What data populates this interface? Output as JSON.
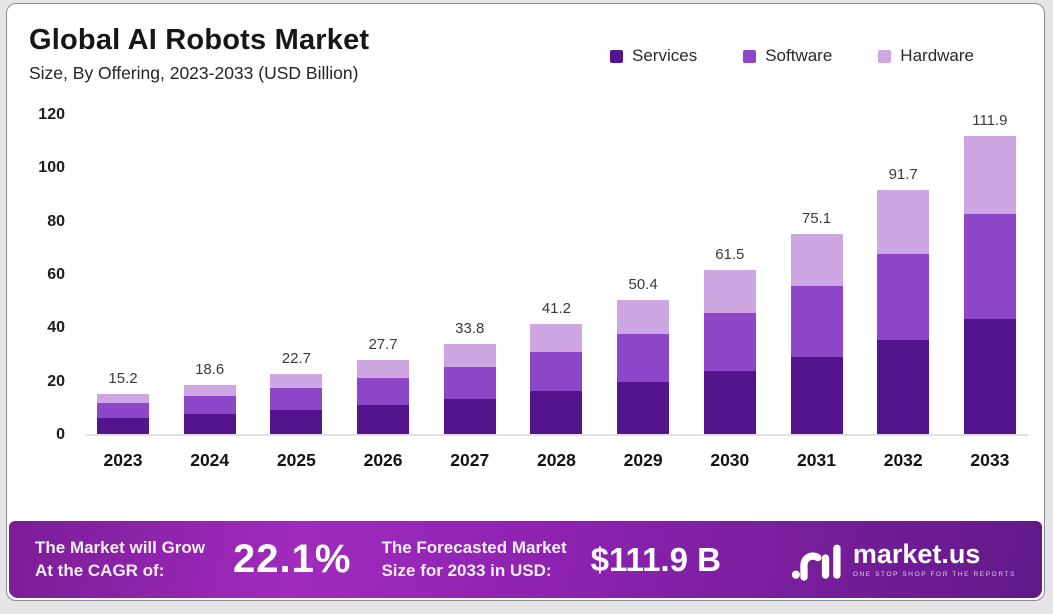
{
  "header": {
    "title": "Global AI Robots Market",
    "subtitle": "Size, By Offering, 2023-2033 (USD Billion)"
  },
  "legend": [
    {
      "label": "Services",
      "color": "#54158c"
    },
    {
      "label": "Software",
      "color": "#8e46c9"
    },
    {
      "label": "Hardware",
      "color": "#cda6e2"
    }
  ],
  "chart_data": {
    "type": "bar",
    "stacked": true,
    "title": "Global AI Robots Market",
    "subtitle": "Size, By Offering, 2023-2033 (USD Billion)",
    "categories": [
      "2023",
      "2024",
      "2025",
      "2026",
      "2027",
      "2028",
      "2029",
      "2030",
      "2031",
      "2032",
      "2033"
    ],
    "totals": [
      15.2,
      18.6,
      22.7,
      27.7,
      33.8,
      41.2,
      50.4,
      61.5,
      75.1,
      91.7,
      111.9
    ],
    "series": [
      {
        "name": "Services",
        "color": "#54158c",
        "values": [
          6.1,
          7.4,
          9.0,
          10.9,
          13.3,
          16.0,
          19.5,
          23.8,
          29.0,
          35.3,
          43.0
        ]
      },
      {
        "name": "Software",
        "color": "#8e46c9",
        "values": [
          5.6,
          6.8,
          8.3,
          10.0,
          11.9,
          14.7,
          17.9,
          21.7,
          26.5,
          32.4,
          39.4
        ]
      },
      {
        "name": "Hardware",
        "color": "#cda6e2",
        "values": [
          3.5,
          4.4,
          5.4,
          6.8,
          8.6,
          10.5,
          13.0,
          16.0,
          19.6,
          24.0,
          29.5
        ]
      }
    ],
    "yticks": [
      0,
      20,
      40,
      60,
      80,
      100,
      120
    ],
    "ylim": [
      0,
      120
    ],
    "xlabel": "",
    "ylabel": "",
    "grid": false,
    "legend_position": "top-right"
  },
  "banner": {
    "grow_line1": "The Market will Grow",
    "grow_line2": "At the CAGR of:",
    "cagr_value": "22.1%",
    "forecast_line1": "The Forecasted Market",
    "forecast_line2": "Size for 2033 in USD:",
    "forecast_value": "$111.9 B",
    "brand": "market.us",
    "tagline": "ONE STOP SHOP FOR THE REPORTS"
  },
  "colors": {
    "services": "#54158c",
    "software": "#8e46c9",
    "hardware": "#cda6e2",
    "banner_gradient_start": "#7a1d96",
    "banner_gradient_mid": "#a02bbd",
    "banner_gradient_end": "#611a88",
    "card_background": "#ffffff",
    "page_background": "#e7e4e8"
  }
}
